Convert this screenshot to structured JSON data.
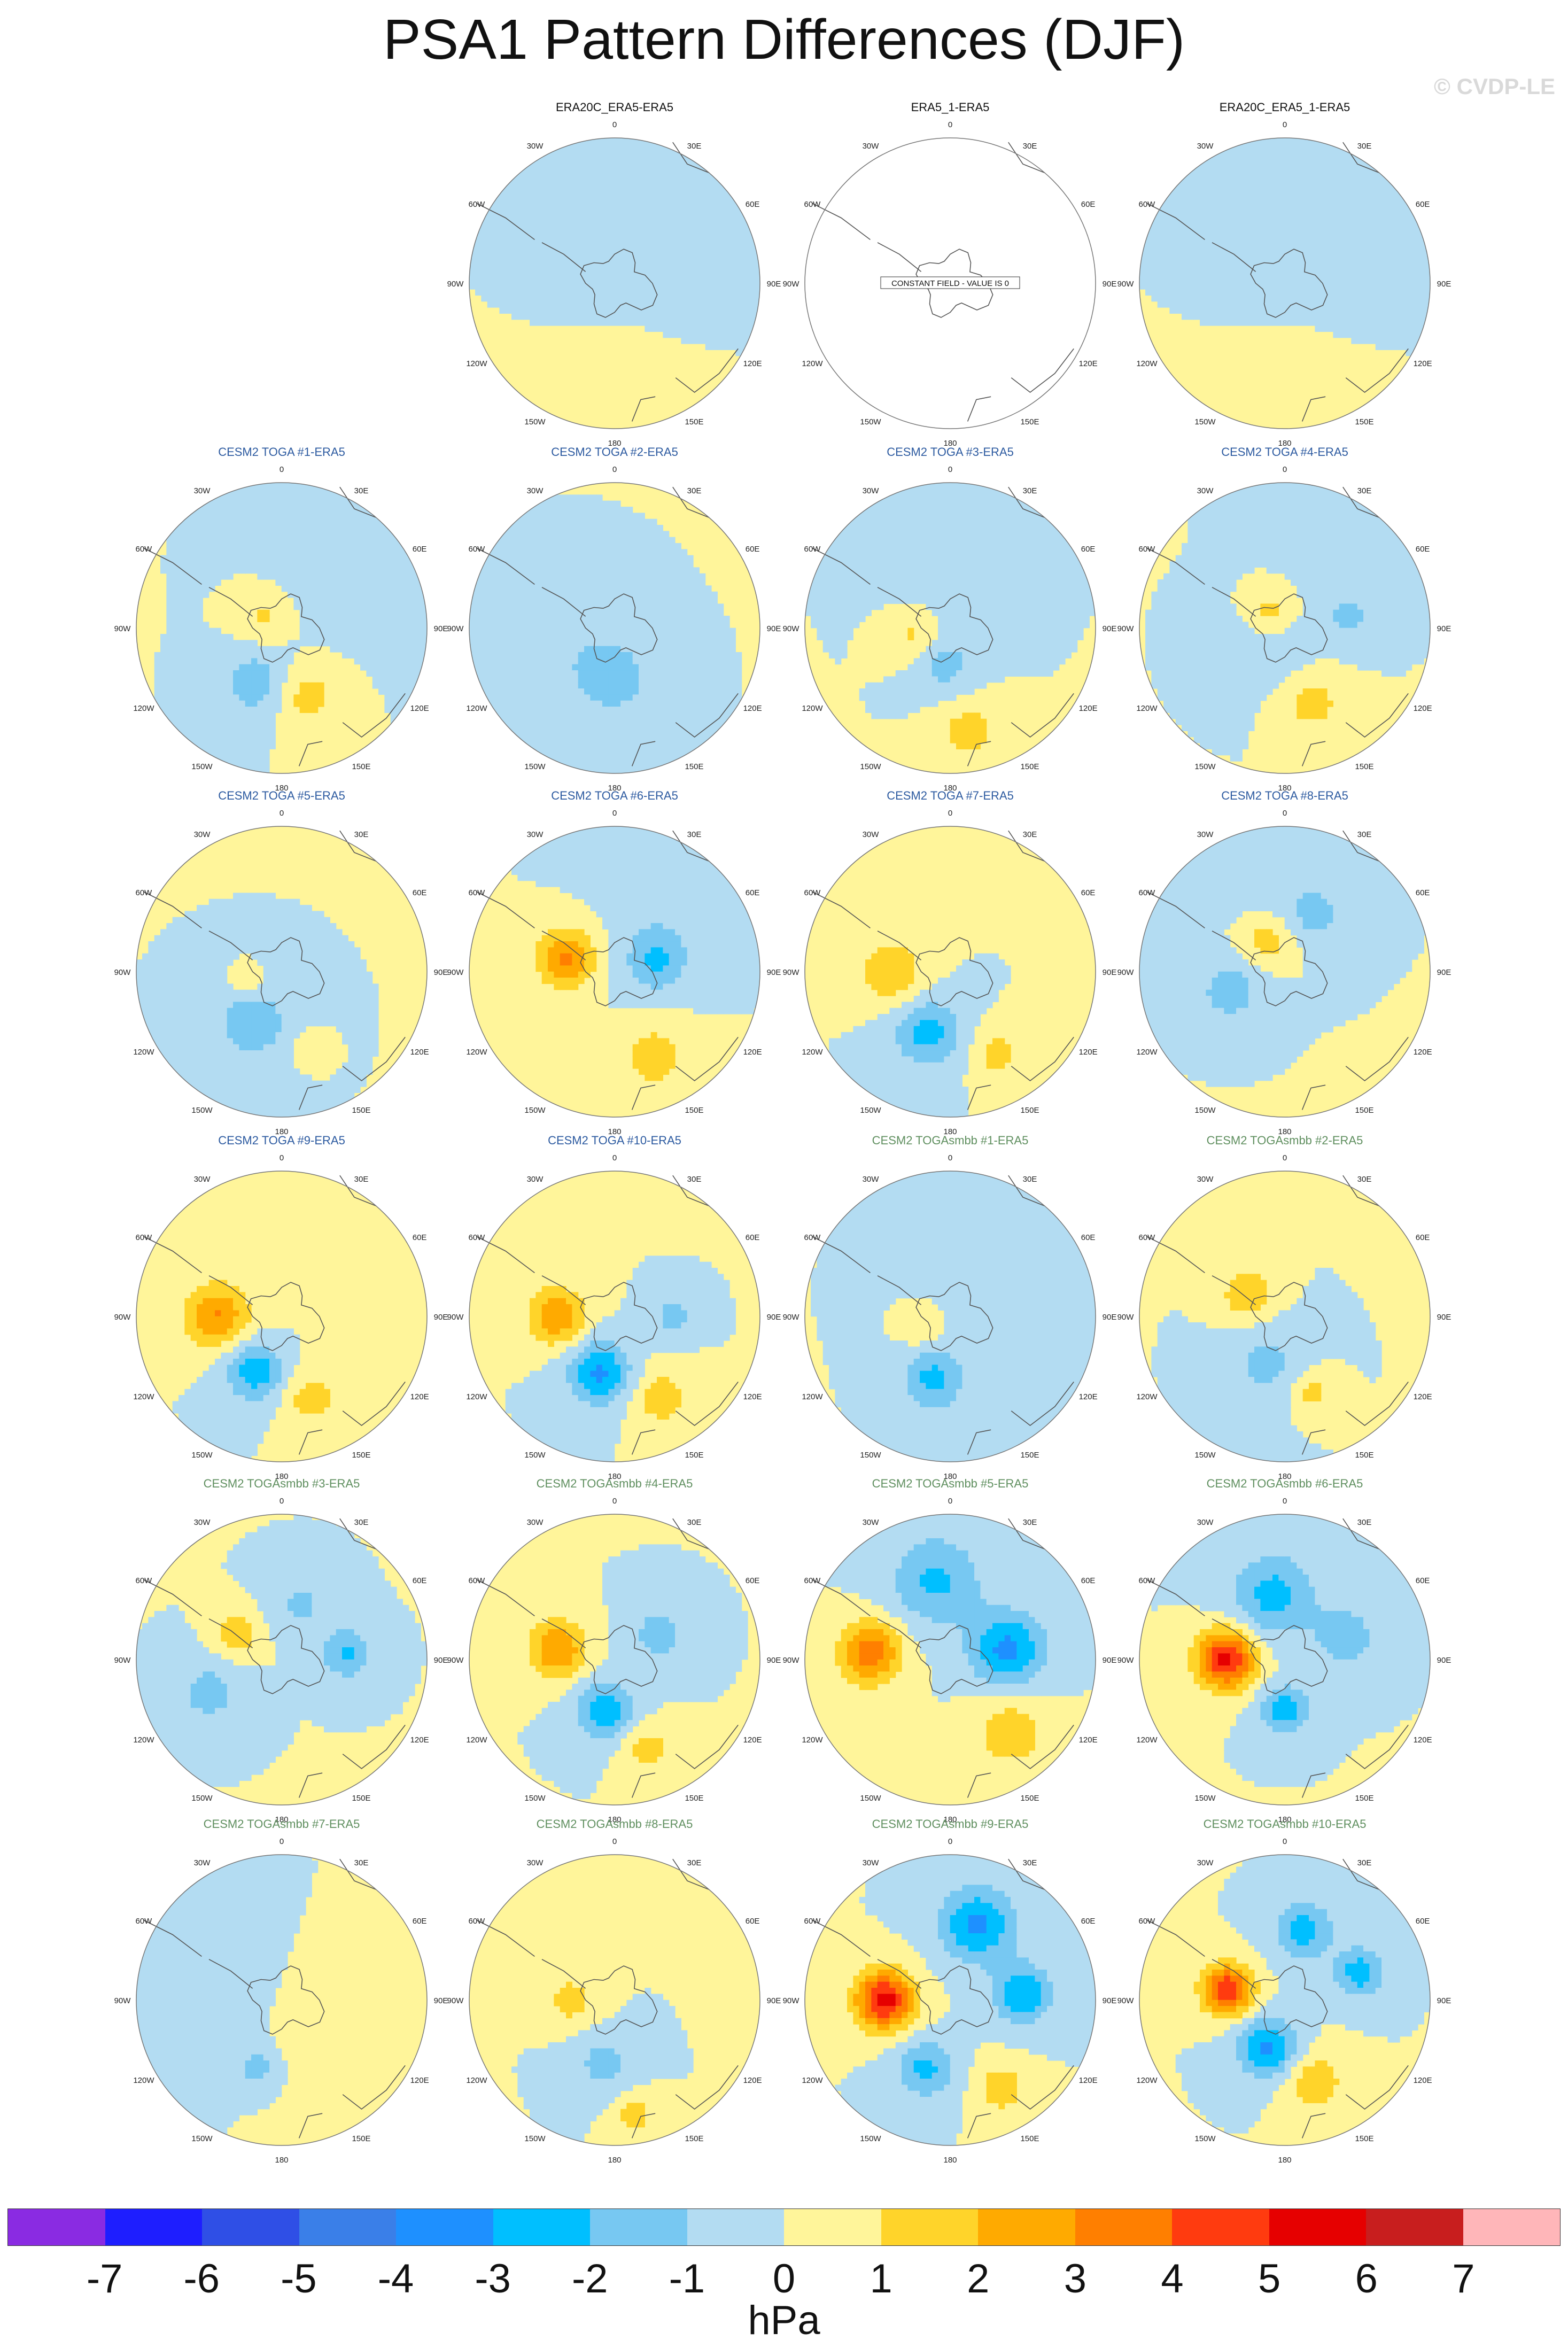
{
  "title": "PSA1 Pattern Differences (DJF)",
  "watermark": "© CVDP-LE",
  "colors": {
    "obs_title": "#111111",
    "toga_title": "#2c5aa0",
    "togasmbb_title": "#5f8f5f",
    "coast": "#555555",
    "map_border": "#777777"
  },
  "colorbar": {
    "units": "hPa",
    "labels": [
      "-7",
      "-6",
      "-5",
      "-4",
      "-3",
      "-2",
      "-1",
      "0",
      "1",
      "2",
      "3",
      "4",
      "5",
      "6",
      "7"
    ],
    "colors": [
      "#8a2be2",
      "#1e1eff",
      "#2f4fe6",
      "#3a7fe8",
      "#1e90ff",
      "#00bfff",
      "#77c8f2",
      "#b3dcf2",
      "#fff59a",
      "#ffd42a",
      "#ffaa00",
      "#ff7f00",
      "#ff3b0f",
      "#e60000",
      "#c81e1e",
      "#ffb6b9"
    ]
  },
  "chart_data": {
    "type": "polar stereographic contour maps (Southern Hemisphere)",
    "variable_units": "hPa",
    "contour_levels": [
      -7,
      -6,
      -5,
      -4,
      -3,
      -2,
      -1,
      0,
      1,
      2,
      3,
      4,
      5,
      6,
      7
    ],
    "longitude_labels": [
      "0",
      "30E",
      "60E",
      "90E",
      "120E",
      "150E",
      "180",
      "150W",
      "120W",
      "90W",
      "60W",
      "30W"
    ],
    "panels": [
      {
        "title": "ERA20C_ERA5-ERA5",
        "group": "obs",
        "row": 0,
        "col": 1,
        "features": [
          {
            "lon": 180,
            "r": 0.55,
            "peak": 0.6,
            "size": 0.35
          },
          {
            "lon": 90,
            "r": 0.3,
            "peak": -0.6,
            "size": 0.3
          },
          {
            "lon": 270,
            "r": 0.2,
            "peak": -0.6,
            "size": 0.25
          }
        ]
      },
      {
        "title": "ERA5_1-ERA5",
        "group": "obs",
        "row": 0,
        "col": 2,
        "constant": true,
        "annotation": "CONSTANT FIELD - VALUE IS 0",
        "features": []
      },
      {
        "title": "ERA20C_ERA5_1-ERA5",
        "group": "obs",
        "row": 0,
        "col": 3,
        "features": [
          {
            "lon": 180,
            "r": 0.55,
            "peak": 0.6,
            "size": 0.35
          },
          {
            "lon": 90,
            "r": 0.3,
            "peak": -0.6,
            "size": 0.3
          },
          {
            "lon": 270,
            "r": 0.2,
            "peak": -0.6,
            "size": 0.25
          }
        ]
      },
      {
        "title": "CESM2 TOGA #1-ERA5",
        "group": "toga",
        "row": 1,
        "col": 0,
        "features": [
          {
            "lon": 205,
            "r": 0.42,
            "peak": -1.7,
            "size": 0.16
          },
          {
            "lon": 160,
            "r": 0.5,
            "peak": 1.5,
            "size": 0.15
          },
          {
            "lon": 300,
            "r": 0.15,
            "peak": 1.2,
            "size": 0.12
          },
          {
            "lon": 45,
            "r": 0.6,
            "peak": -0.5,
            "size": 0.3
          }
        ]
      },
      {
        "title": "CESM2 TOGA #2-ERA5",
        "group": "toga",
        "row": 1,
        "col": 1,
        "features": [
          {
            "lon": 180,
            "r": 0.35,
            "peak": -1.4,
            "size": 0.2
          },
          {
            "lon": 250,
            "r": 0.35,
            "peak": -0.6,
            "size": 0.25
          }
        ]
      },
      {
        "title": "CESM2 TOGA #3-ERA5",
        "group": "toga",
        "row": 1,
        "col": 2,
        "features": [
          {
            "lon": 190,
            "r": 0.25,
            "peak": -1.5,
            "size": 0.14
          },
          {
            "lon": 170,
            "r": 0.72,
            "peak": 1.5,
            "size": 0.14
          },
          {
            "lon": 255,
            "r": 0.25,
            "peak": 1.3,
            "size": 0.12
          },
          {
            "lon": 0,
            "r": 0.45,
            "peak": -0.6,
            "size": 0.25
          }
        ]
      },
      {
        "title": "CESM2 TOGA #4-ERA5",
        "group": "toga",
        "row": 1,
        "col": 3,
        "features": [
          {
            "lon": 315,
            "r": 0.15,
            "peak": 1.6,
            "size": 0.12
          },
          {
            "lon": 160,
            "r": 0.55,
            "peak": 1.5,
            "size": 0.14
          },
          {
            "lon": 80,
            "r": 0.45,
            "peak": -1.3,
            "size": 0.12
          },
          {
            "lon": 230,
            "r": 0.15,
            "peak": -0.8,
            "size": 0.2
          },
          {
            "lon": 30,
            "r": 0.75,
            "peak": -0.6,
            "size": 0.25
          }
        ]
      },
      {
        "title": "CESM2 TOGA #5-ERA5",
        "group": "toga",
        "row": 2,
        "col": 0,
        "features": [
          {
            "lon": 210,
            "r": 0.4,
            "peak": -1.6,
            "size": 0.2
          },
          {
            "lon": 255,
            "r": 0.25,
            "peak": 1.3,
            "size": 0.08
          },
          {
            "lon": 160,
            "r": 0.55,
            "peak": 1.1,
            "size": 0.08
          }
        ]
      },
      {
        "title": "CESM2 TOGA #6-ERA5",
        "group": "toga",
        "row": 2,
        "col": 1,
        "features": [
          {
            "lon": 285,
            "r": 0.35,
            "peak": 3.2,
            "size": 0.14
          },
          {
            "lon": 155,
            "r": 0.65,
            "peak": 1.7,
            "size": 0.15
          },
          {
            "lon": 75,
            "r": 0.3,
            "peak": -2.2,
            "size": 0.15
          },
          {
            "lon": 30,
            "r": 0.7,
            "peak": -0.8,
            "size": 0.25
          }
        ]
      },
      {
        "title": "CESM2 TOGA #7-ERA5",
        "group": "toga",
        "row": 2,
        "col": 2,
        "features": [
          {
            "lon": 270,
            "r": 0.4,
            "peak": 2.0,
            "size": 0.15
          },
          {
            "lon": 200,
            "r": 0.45,
            "peak": -2.4,
            "size": 0.16
          },
          {
            "lon": 150,
            "r": 0.65,
            "peak": 1.5,
            "size": 0.12
          }
        ]
      },
      {
        "title": "CESM2 TOGA #8-ERA5",
        "group": "toga",
        "row": 2,
        "col": 3,
        "features": [
          {
            "lon": 330,
            "r": 0.25,
            "peak": 1.6,
            "size": 0.12
          },
          {
            "lon": 250,
            "r": 0.4,
            "peak": -1.6,
            "size": 0.15
          },
          {
            "lon": 30,
            "r": 0.45,
            "peak": -1.3,
            "size": 0.12
          },
          {
            "lon": 0,
            "r": 0.6,
            "peak": -0.6,
            "size": 0.25
          }
        ]
      },
      {
        "title": "CESM2 TOGA #9-ERA5",
        "group": "toga",
        "row": 3,
        "col": 0,
        "features": [
          {
            "lon": 270,
            "r": 0.45,
            "peak": 3.0,
            "size": 0.15
          },
          {
            "lon": 205,
            "r": 0.42,
            "peak": -2.7,
            "size": 0.14
          },
          {
            "lon": 160,
            "r": 0.6,
            "peak": 1.5,
            "size": 0.14
          },
          {
            "lon": 0,
            "r": 0.5,
            "peak": 0.6,
            "size": 0.3
          }
        ]
      },
      {
        "title": "CESM2 TOGA #10-ERA5",
        "group": "toga",
        "row": 3,
        "col": 1,
        "features": [
          {
            "lon": 270,
            "r": 0.4,
            "peak": 2.9,
            "size": 0.14
          },
          {
            "lon": 195,
            "r": 0.4,
            "peak": -3.2,
            "size": 0.15
          },
          {
            "lon": 150,
            "r": 0.65,
            "peak": 1.6,
            "size": 0.14
          },
          {
            "lon": 90,
            "r": 0.4,
            "peak": -1.4,
            "size": 0.1
          }
        ]
      },
      {
        "title": "CESM2 TOGAsmbb #1-ERA5",
        "group": "togasmbb",
        "row": 3,
        "col": 2,
        "features": [
          {
            "lon": 195,
            "r": 0.45,
            "peak": -2.3,
            "size": 0.15
          },
          {
            "lon": 250,
            "r": 0.2,
            "peak": 1.2,
            "size": 0.1
          },
          {
            "lon": 60,
            "r": 0.35,
            "peak": -0.6,
            "size": 0.3
          }
        ]
      },
      {
        "title": "CESM2 TOGAsmbb #2-ERA5",
        "group": "togasmbb",
        "row": 3,
        "col": 3,
        "features": [
          {
            "lon": 300,
            "r": 0.3,
            "peak": 2.0,
            "size": 0.12
          },
          {
            "lon": 160,
            "r": 0.55,
            "peak": 1.5,
            "size": 0.1
          },
          {
            "lon": 200,
            "r": 0.35,
            "peak": -1.3,
            "size": 0.18
          }
        ]
      },
      {
        "title": "CESM2 TOGAsmbb #3-ERA5",
        "group": "togasmbb",
        "row": 4,
        "col": 0,
        "features": [
          {
            "lon": 300,
            "r": 0.35,
            "peak": 2.0,
            "size": 0.1
          },
          {
            "lon": 85,
            "r": 0.45,
            "peak": -2.2,
            "size": 0.12
          },
          {
            "lon": 245,
            "r": 0.55,
            "peak": -1.5,
            "size": 0.15
          },
          {
            "lon": 20,
            "r": 0.4,
            "peak": -1.2,
            "size": 0.14
          }
        ]
      },
      {
        "title": "CESM2 TOGAsmbb #4-ERA5",
        "group": "togasmbb",
        "row": 4,
        "col": 1,
        "features": [
          {
            "lon": 280,
            "r": 0.4,
            "peak": 3.0,
            "size": 0.14
          },
          {
            "lon": 190,
            "r": 0.35,
            "peak": -2.7,
            "size": 0.14
          },
          {
            "lon": 60,
            "r": 0.35,
            "peak": -1.5,
            "size": 0.14
          },
          {
            "lon": 160,
            "r": 0.65,
            "peak": 1.5,
            "size": 0.12
          }
        ]
      },
      {
        "title": "CESM2 TOGAsmbb #5-ERA5",
        "group": "togasmbb",
        "row": 4,
        "col": 2,
        "features": [
          {
            "lon": 275,
            "r": 0.55,
            "peak": 3.7,
            "size": 0.15
          },
          {
            "lon": 80,
            "r": 0.4,
            "peak": -3.3,
            "size": 0.18
          },
          {
            "lon": 350,
            "r": 0.55,
            "peak": -2.2,
            "size": 0.22
          },
          {
            "lon": 140,
            "r": 0.65,
            "peak": 1.7,
            "size": 0.18
          }
        ]
      },
      {
        "title": "CESM2 TOGAsmbb #6-ERA5",
        "group": "togasmbb",
        "row": 4,
        "col": 3,
        "features": [
          {
            "lon": 270,
            "r": 0.4,
            "peak": 5.3,
            "size": 0.14
          },
          {
            "lon": 180,
            "r": 0.35,
            "peak": -2.6,
            "size": 0.12
          },
          {
            "lon": 350,
            "r": 0.45,
            "peak": -2.4,
            "size": 0.2
          },
          {
            "lon": 70,
            "r": 0.45,
            "peak": -1.6,
            "size": 0.16
          }
        ]
      },
      {
        "title": "CESM2 TOGAsmbb #7-ERA5",
        "group": "togasmbb",
        "row": 5,
        "col": 0,
        "features": [
          {
            "lon": 200,
            "r": 0.5,
            "peak": -1.5,
            "size": 0.1
          },
          {
            "lon": 120,
            "r": 0.5,
            "peak": 0.6,
            "size": 0.3
          },
          {
            "lon": 280,
            "r": 0.6,
            "peak": -0.6,
            "size": 0.3
          }
        ]
      },
      {
        "title": "CESM2 TOGAsmbb #8-ERA5",
        "group": "togasmbb",
        "row": 5,
        "col": 1,
        "features": [
          {
            "lon": 270,
            "r": 0.3,
            "peak": 1.5,
            "size": 0.12
          },
          {
            "lon": 190,
            "r": 0.45,
            "peak": -1.4,
            "size": 0.14
          },
          {
            "lon": 170,
            "r": 0.8,
            "peak": 1.5,
            "size": 0.1
          }
        ]
      },
      {
        "title": "CESM2 TOGAsmbb #9-ERA5",
        "group": "togasmbb",
        "row": 5,
        "col": 2,
        "features": [
          {
            "lon": 270,
            "r": 0.45,
            "peak": 5.5,
            "size": 0.14
          },
          {
            "lon": 20,
            "r": 0.55,
            "peak": -3.2,
            "size": 0.18
          },
          {
            "lon": 85,
            "r": 0.5,
            "peak": -3.0,
            "size": 0.14
          },
          {
            "lon": 200,
            "r": 0.5,
            "peak": -2.3,
            "size": 0.14
          },
          {
            "lon": 150,
            "r": 0.7,
            "peak": 1.7,
            "size": 0.12
          }
        ]
      },
      {
        "title": "CESM2 TOGAsmbb #10-ERA5",
        "group": "togasmbb",
        "row": 5,
        "col": 3,
        "features": [
          {
            "lon": 280,
            "r": 0.4,
            "peak": 5.0,
            "size": 0.12
          },
          {
            "lon": 200,
            "r": 0.35,
            "peak": -3.3,
            "size": 0.14
          },
          {
            "lon": 15,
            "r": 0.5,
            "peak": -2.5,
            "size": 0.14
          },
          {
            "lon": 70,
            "r": 0.55,
            "peak": -2.6,
            "size": 0.12
          },
          {
            "lon": 160,
            "r": 0.6,
            "peak": 1.8,
            "size": 0.14
          }
        ]
      }
    ]
  }
}
